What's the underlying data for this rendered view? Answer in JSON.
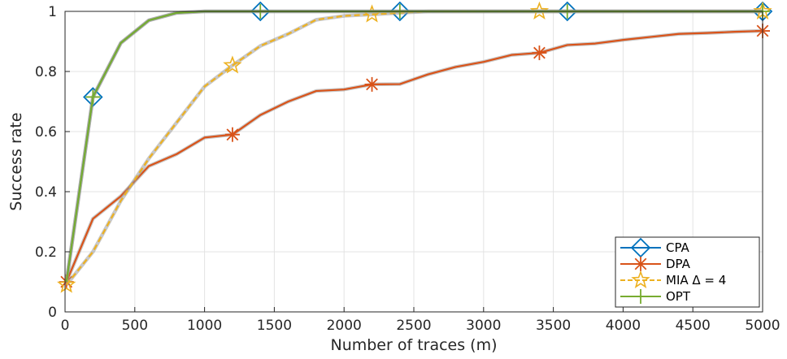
{
  "chart_data": {
    "type": "line",
    "title": "",
    "xlabel": "Number of traces (m)",
    "ylabel": "Success rate",
    "xlim": [
      0,
      5000
    ],
    "ylim": [
      0,
      1
    ],
    "x_ticks": [
      "0",
      "500",
      "1000",
      "1500",
      "2000",
      "2500",
      "3000",
      "3500",
      "4000",
      "4500",
      "5000"
    ],
    "y_ticks": [
      "0",
      "0.2",
      "0.4",
      "0.6",
      "0.8",
      "1"
    ],
    "grid": true,
    "legend_position": "bottom-right",
    "series": [
      {
        "name": "CPA",
        "color": "#0072BD",
        "marker": "diamond",
        "x": [
          10,
          200,
          400,
          600,
          800,
          1000,
          1200,
          1400,
          1600,
          1800,
          2000,
          2200,
          2400,
          2600,
          2800,
          3000,
          3200,
          3400,
          3600,
          3800,
          4000,
          4200,
          4400,
          4600,
          4800,
          5000
        ],
        "y": [
          0.1,
          0.715,
          0.895,
          0.97,
          0.995,
          1,
          1,
          1,
          1,
          1,
          1,
          1,
          1,
          1,
          1,
          1,
          1,
          1,
          1,
          1,
          1,
          1,
          1,
          1,
          1,
          1
        ],
        "marker_x": [
          200,
          1400,
          2400,
          3600,
          5000
        ]
      },
      {
        "name": "DPA",
        "color": "#D95319",
        "marker": "asterisk",
        "x": [
          10,
          200,
          400,
          600,
          800,
          1000,
          1200,
          1400,
          1600,
          1800,
          2000,
          2200,
          2400,
          2600,
          2800,
          3000,
          3200,
          3400,
          3600,
          3800,
          4000,
          4200,
          4400,
          4600,
          4800,
          5000
        ],
        "y": [
          0.1,
          0.31,
          0.385,
          0.485,
          0.525,
          0.58,
          0.59,
          0.655,
          0.7,
          0.735,
          0.74,
          0.757,
          0.758,
          0.79,
          0.815,
          0.832,
          0.855,
          0.862,
          0.888,
          0.893,
          0.905,
          0.915,
          0.925,
          0.928,
          0.932,
          0.935
        ],
        "marker_x": [
          10,
          1200,
          2200,
          3400,
          5000
        ]
      },
      {
        "name": "MIA Δ = 4",
        "color": "#EDB120",
        "marker": "star",
        "dashed": true,
        "x": [
          10,
          200,
          400,
          600,
          800,
          1000,
          1200,
          1400,
          1600,
          1800,
          2000,
          2200,
          2400,
          2600,
          2800,
          3000,
          3200,
          3400,
          3600,
          3800,
          4000,
          4200,
          4400,
          4600,
          4800,
          5000
        ],
        "y": [
          0.09,
          0.2,
          0.37,
          0.51,
          0.63,
          0.75,
          0.82,
          0.885,
          0.925,
          0.972,
          0.985,
          0.99,
          0.995,
          1,
          1,
          1,
          1,
          1,
          1,
          1,
          1,
          1,
          1,
          1,
          1,
          1
        ],
        "marker_x": [
          10,
          1200,
          2200,
          3400,
          5000
        ]
      },
      {
        "name": "OPT",
        "color": "#77AC30",
        "marker": "plus",
        "x": [
          10,
          200,
          400,
          600,
          800,
          1000,
          1200,
          1400,
          1600,
          1800,
          2000,
          2200,
          2400,
          2600,
          2800,
          3000,
          3200,
          3400,
          3600,
          3800,
          4000,
          4200,
          4400,
          4600,
          4800,
          5000
        ],
        "y": [
          0.1,
          0.715,
          0.895,
          0.97,
          0.995,
          1,
          1,
          1,
          1,
          1,
          1,
          1,
          1,
          1,
          1,
          1,
          1,
          1,
          1,
          1,
          1,
          1,
          1,
          1,
          1,
          1
        ],
        "marker_x": [
          200,
          1400,
          2400,
          3600,
          5000
        ]
      }
    ]
  }
}
